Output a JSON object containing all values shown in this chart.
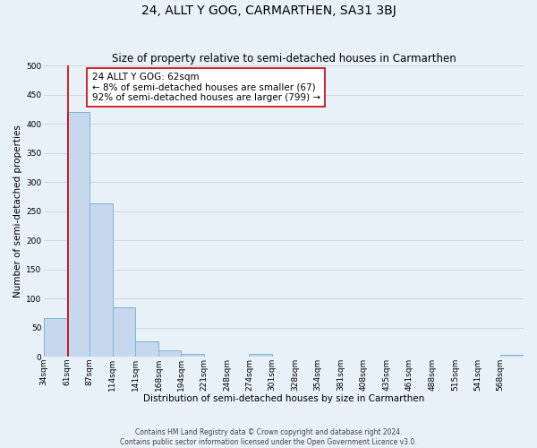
{
  "title": "24, ALLT Y GOG, CARMARTHEN, SA31 3BJ",
  "subtitle": "Size of property relative to semi-detached houses in Carmarthen",
  "xlabel": "Distribution of semi-detached houses by size in Carmarthen",
  "ylabel": "Number of semi-detached properties",
  "bin_labels": [
    "34sqm",
    "61sqm",
    "87sqm",
    "114sqm",
    "141sqm",
    "168sqm",
    "194sqm",
    "221sqm",
    "248sqm",
    "274sqm",
    "301sqm",
    "328sqm",
    "354sqm",
    "381sqm",
    "408sqm",
    "435sqm",
    "461sqm",
    "488sqm",
    "515sqm",
    "541sqm",
    "568sqm"
  ],
  "bin_edges": [
    34,
    61,
    87,
    114,
    141,
    168,
    194,
    221,
    248,
    274,
    301,
    328,
    354,
    381,
    408,
    435,
    461,
    488,
    515,
    541,
    568,
    595
  ],
  "bar_values": [
    67,
    420,
    263,
    85,
    27,
    11,
    5,
    0,
    0,
    5,
    0,
    0,
    0,
    0,
    0,
    0,
    0,
    0,
    0,
    0,
    3
  ],
  "bar_color": "#c5d8ed",
  "bar_edge_color": "#7ab4d4",
  "property_line_x": 62,
  "property_line_color": "#cc0000",
  "annotation_line1": "24 ALLT Y GOG: 62sqm",
  "annotation_line2": "← 8% of semi-detached houses are smaller (67)",
  "annotation_line3": "92% of semi-detached houses are larger (799) →",
  "annotation_box_color": "#ffffff",
  "annotation_box_edge_color": "#cc0000",
  "ylim": [
    0,
    500
  ],
  "yticks": [
    0,
    50,
    100,
    150,
    200,
    250,
    300,
    350,
    400,
    450,
    500
  ],
  "grid_color": "#ccd8e8",
  "background_color": "#e8f0f8",
  "footer_line1": "Contains HM Land Registry data © Crown copyright and database right 2024.",
  "footer_line2": "Contains public sector information licensed under the Open Government Licence v3.0.",
  "title_fontsize": 10,
  "subtitle_fontsize": 8.5,
  "axis_label_fontsize": 7.5,
  "tick_fontsize": 6.5,
  "annotation_fontsize": 7.5,
  "footer_fontsize": 5.5
}
